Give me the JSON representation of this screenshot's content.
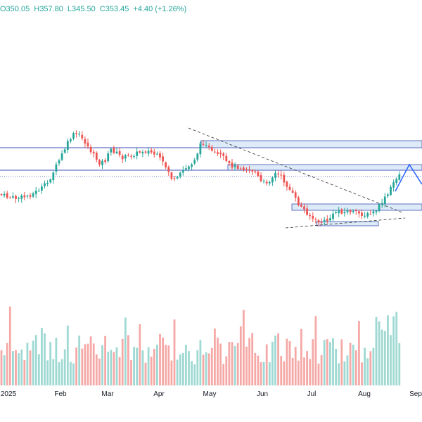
{
  "header": {
    "open_text": "O350.05",
    "high_text": "H357.80",
    "low_text": "L345.50",
    "close_text": "C353.45",
    "change_text": "+4.40 (+1.26%)",
    "color_up": "#26a69a",
    "color_down": "#ef5350"
  },
  "chart_data": {
    "type": "candlestick",
    "x_ticks": [
      "2025",
      "Feb",
      "Mar",
      "Apr",
      "May",
      "Jun",
      "Jul",
      "Aug",
      "Sep"
    ],
    "grid": false,
    "colors": {
      "up": "#26a69a",
      "down": "#ef5350",
      "volume_up": "#9fd9d3",
      "volume_down": "#f5a9a7",
      "drawing": "#3f51b5",
      "zone_fill": "#dcebf7",
      "dashed": "#333333"
    },
    "series_close_trend": [
      [
        0,
        276
      ],
      [
        10,
        280
      ],
      [
        22,
        282
      ],
      [
        34,
        280
      ],
      [
        46,
        276
      ],
      [
        58,
        268
      ],
      [
        68,
        260
      ],
      [
        78,
        240
      ],
      [
        88,
        220
      ],
      [
        98,
        200
      ],
      [
        104,
        192
      ],
      [
        110,
        190
      ],
      [
        118,
        198
      ],
      [
        126,
        210
      ],
      [
        134,
        222
      ],
      [
        142,
        232
      ],
      [
        150,
        228
      ],
      [
        158,
        212
      ],
      [
        166,
        218
      ],
      [
        174,
        224
      ],
      [
        184,
        222
      ],
      [
        194,
        218
      ],
      [
        204,
        214
      ],
      [
        214,
        216
      ],
      [
        224,
        222
      ],
      [
        232,
        232
      ],
      [
        240,
        244
      ],
      [
        246,
        258
      ],
      [
        252,
        254
      ],
      [
        260,
        242
      ],
      [
        270,
        236
      ],
      [
        278,
        224
      ],
      [
        286,
        204
      ],
      [
        292,
        202
      ],
      [
        300,
        216
      ],
      [
        308,
        220
      ],
      [
        316,
        222
      ],
      [
        324,
        234
      ],
      [
        332,
        236
      ],
      [
        342,
        238
      ],
      [
        352,
        240
      ],
      [
        362,
        244
      ],
      [
        372,
        260
      ],
      [
        382,
        258
      ],
      [
        392,
        246
      ],
      [
        400,
        252
      ],
      [
        408,
        264
      ],
      [
        416,
        276
      ],
      [
        424,
        290
      ],
      [
        432,
        298
      ],
      [
        440,
        306
      ],
      [
        448,
        314
      ],
      [
        456,
        316
      ],
      [
        464,
        314
      ],
      [
        472,
        308
      ],
      [
        480,
        298
      ],
      [
        488,
        302
      ],
      [
        496,
        300
      ],
      [
        504,
        302
      ],
      [
        512,
        304
      ],
      [
        520,
        306
      ],
      [
        528,
        304
      ],
      [
        536,
        298
      ],
      [
        544,
        286
      ],
      [
        552,
        276
      ],
      [
        558,
        262
      ],
      [
        564,
        252
      ],
      [
        568,
        248
      ]
    ]
  }
}
